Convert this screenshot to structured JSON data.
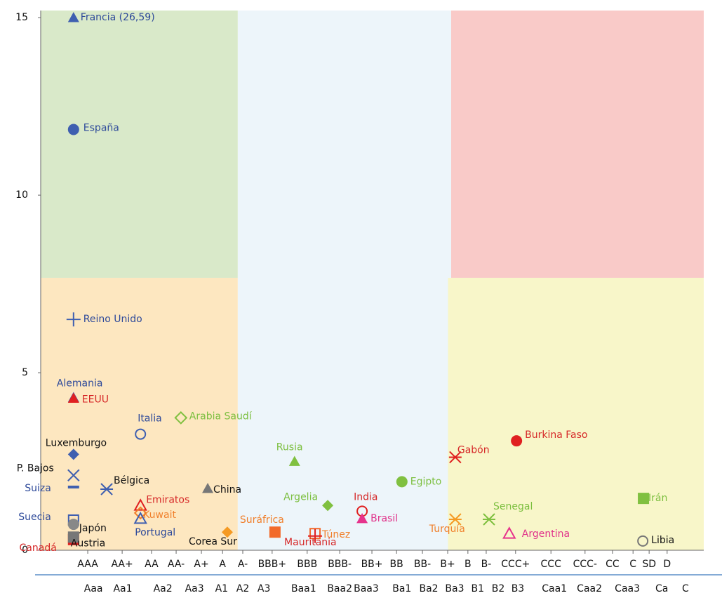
{
  "chart_data": {
    "type": "scatter",
    "xlim": [
      0,
      21
    ],
    "ylim": [
      0,
      15.2
    ],
    "yticks": [
      0,
      5,
      10,
      15
    ],
    "xticks": [
      {
        "value": 1.49,
        "label": "AAA"
      },
      {
        "value": 2.58,
        "label": "AA+"
      },
      {
        "value": 3.51,
        "label": "AA"
      },
      {
        "value": 4.29,
        "label": "AA-"
      },
      {
        "value": 5.09,
        "label": "A+"
      },
      {
        "value": 5.76,
        "label": "A"
      },
      {
        "value": 6.4,
        "label": "A-"
      },
      {
        "value": 7.33,
        "label": "BBB+"
      },
      {
        "value": 8.44,
        "label": "BBB"
      },
      {
        "value": 9.47,
        "label": "BBB-"
      },
      {
        "value": 10.49,
        "label": "BB+"
      },
      {
        "value": 11.27,
        "label": "BB"
      },
      {
        "value": 12.09,
        "label": "BB-"
      },
      {
        "value": 12.89,
        "label": "B+"
      },
      {
        "value": 13.53,
        "label": "B"
      },
      {
        "value": 14.11,
        "label": "B-"
      },
      {
        "value": 15.04,
        "label": "CCC+"
      },
      {
        "value": 16.16,
        "label": "CCC"
      },
      {
        "value": 17.24,
        "label": "CCC-"
      },
      {
        "value": 18.11,
        "label": "CC"
      },
      {
        "value": 18.76,
        "label": "C"
      },
      {
        "value": 19.27,
        "label": "SD"
      },
      {
        "value": 19.84,
        "label": "D"
      }
    ],
    "x2ticks": [
      {
        "value": 1.67,
        "label": "Aaa"
      },
      {
        "value": 2.6,
        "label": "Aa1"
      },
      {
        "value": 3.87,
        "label": "Aa2"
      },
      {
        "value": 4.87,
        "label": "Aa3"
      },
      {
        "value": 5.73,
        "label": "A1"
      },
      {
        "value": 6.4,
        "label": "A2"
      },
      {
        "value": 7.07,
        "label": "A3"
      },
      {
        "value": 8.33,
        "label": "Baa1"
      },
      {
        "value": 9.47,
        "label": "Baa2"
      },
      {
        "value": 10.31,
        "label": "Baa3"
      },
      {
        "value": 11.44,
        "label": "Ba1"
      },
      {
        "value": 12.29,
        "label": "Ba2"
      },
      {
        "value": 13.11,
        "label": "Ba3"
      },
      {
        "value": 13.84,
        "label": "B1"
      },
      {
        "value": 14.49,
        "label": "B2"
      },
      {
        "value": 15.11,
        "label": "B3"
      },
      {
        "value": 16.27,
        "label": "Caa1"
      },
      {
        "value": 17.38,
        "label": "Caa2"
      },
      {
        "value": 18.58,
        "label": "Caa3"
      },
      {
        "value": 19.67,
        "label": "Ca"
      },
      {
        "value": 20.42,
        "label": "C"
      }
    ],
    "regions": [
      {
        "x": [
          6.24,
          13.0
        ],
        "y": [
          0,
          15.2
        ],
        "color": "#edf5fa"
      },
      {
        "x": [
          0,
          6.24
        ],
        "y": [
          7.67,
          15.2
        ],
        "color": "#d9e9c9"
      },
      {
        "x": [
          0,
          6.24
        ],
        "y": [
          0,
          7.67
        ],
        "color": "#fde7c0"
      },
      {
        "x": [
          13.0,
          21
        ],
        "y": [
          7.67,
          15.2
        ],
        "color": "#f9cac8"
      },
      {
        "x": [
          12.9,
          21
        ],
        "y": [
          0,
          7.67
        ],
        "color": "#f8f6c9"
      }
    ],
    "series": [
      {
        "name": "Francia (26,59)",
        "marker": "triangle",
        "color": "#3f5fb0",
        "label_color": "#2e4a9a",
        "x": [
          1.04
        ],
        "values": [
          15.0
        ]
      },
      {
        "name": "España",
        "marker": "circle",
        "color": "#3f5fb0",
        "label_color": "#2e4a9a",
        "x": [
          1.04
        ],
        "values": [
          11.85
        ]
      },
      {
        "name": "Reino Unido",
        "marker": "plus",
        "color": "#3f5fb0",
        "label_color": "#2e4a9a",
        "x": [
          1.04
        ],
        "values": [
          6.5
        ]
      },
      {
        "name": "Alemania",
        "marker": "triangle",
        "color": "#3f5fb0",
        "label_color": "#2e4a9a",
        "x": [
          1.04
        ],
        "values": [
          4.3
        ]
      },
      {
        "name": "EEUU",
        "marker": "triangle",
        "color": "#e02020",
        "label_color": "#d62828",
        "x": [
          1.04
        ],
        "values": [
          4.28
        ]
      },
      {
        "name": "Italia",
        "marker": "circle-open",
        "color": "#3f5fb0",
        "label_color": "#2e4a9a",
        "x": [
          3.16
        ],
        "values": [
          3.27
        ]
      },
      {
        "name": "Arabia Saudí",
        "marker": "diamond-open",
        "color": "#80c040",
        "label_color": "#7cbf3f",
        "x": [
          4.44
        ],
        "values": [
          3.73
        ]
      },
      {
        "name": "Luxemburgo",
        "marker": "diamond",
        "color": "#3f5fb0",
        "label_color": "#111111",
        "x": [
          1.04
        ],
        "values": [
          2.7
        ]
      },
      {
        "name": "P. Bajos",
        "marker": "x",
        "color": "#3f5fb0",
        "label_color": "#111111",
        "x": [
          1.04
        ],
        "values": [
          2.11
        ]
      },
      {
        "name": "Suiza",
        "marker": "minus",
        "color": "#3f5fb0",
        "label_color": "#2e4a9a",
        "x": [
          1.04
        ],
        "values": [
          1.78
        ]
      },
      {
        "name": "Bélgica",
        "marker": "asterisk",
        "color": "#3f5fb0",
        "label_color": "#111111",
        "x": [
          2.09
        ],
        "values": [
          1.72
        ]
      },
      {
        "name": "China",
        "marker": "triangle",
        "color": "#777777",
        "label_color": "#111111",
        "x": [
          5.29
        ],
        "values": [
          1.74
        ]
      },
      {
        "name": "Emiratos",
        "marker": "triangle-open",
        "color": "#e02020",
        "label_color": "#d62828",
        "x": [
          3.16
        ],
        "values": [
          1.26
        ]
      },
      {
        "name": "Kuwait",
        "marker": "diamond-open",
        "color": "#f07f2a",
        "label_color": "#f07f2a",
        "x": [
          3.16
        ],
        "values": [
          1.05
        ]
      },
      {
        "name": "Portugal",
        "marker": "triangle-open",
        "color": "#3f5fb0",
        "label_color": "#2e4a9a",
        "x": [
          3.16
        ],
        "values": [
          0.89
        ]
      },
      {
        "name": "Suecia",
        "marker": "square-open",
        "color": "#3f5fb0",
        "label_color": "#2e4a9a",
        "x": [
          1.04
        ],
        "values": [
          0.85
        ]
      },
      {
        "name": "Japón",
        "marker": "circle",
        "color": "#888888",
        "label_color": "#111111",
        "x": [
          1.04
        ],
        "values": [
          0.73
        ]
      },
      {
        "name": "Canadá",
        "marker": "square",
        "color": "#e02020",
        "label_color": "#d62828",
        "x": [
          1.04
        ],
        "values": [
          0.3
        ]
      },
      {
        "name": "Austria",
        "marker": "square",
        "color": "#777777",
        "label_color": "#111111",
        "x": [
          1.04
        ],
        "values": [
          0.37
        ]
      },
      {
        "name": "Corea Sur",
        "marker": "diamond",
        "color": "#f59a23",
        "label_color": "#111111",
        "x": [
          5.91
        ],
        "values": [
          0.51
        ]
      },
      {
        "name": "Suráfrica",
        "marker": "square",
        "color": "#f26a2a",
        "label_color": "#f07f2a",
        "x": [
          7.42
        ],
        "values": [
          0.51
        ]
      },
      {
        "name": "Túnez",
        "marker": "square-open",
        "color": "#f26a2a",
        "label_color": "#f07f2a",
        "x": [
          8.69
        ],
        "values": [
          0.47
        ]
      },
      {
        "name": "Mauritania",
        "marker": "plus",
        "color": "#e02020",
        "label_color": "#d62828",
        "x": [
          8.69
        ],
        "values": [
          0.4
        ]
      },
      {
        "name": "Rusia",
        "marker": "triangle",
        "color": "#80c040",
        "label_color": "#7cbf3f",
        "x": [
          8.04
        ],
        "values": [
          2.5
        ]
      },
      {
        "name": "Argelia",
        "marker": "diamond",
        "color": "#80c040",
        "label_color": "#7cbf3f",
        "x": [
          9.09
        ],
        "values": [
          1.26
        ]
      },
      {
        "name": "India",
        "marker": "circle-open",
        "color": "#e02020",
        "label_color": "#d62828",
        "x": [
          10.18
        ],
        "values": [
          1.1
        ]
      },
      {
        "name": "Brasil",
        "marker": "triangle",
        "color": "#e6338c",
        "label_color": "#e0338a",
        "x": [
          10.18
        ],
        "values": [
          0.89
        ]
      },
      {
        "name": "Egipto",
        "marker": "circle",
        "color": "#80c040",
        "label_color": "#7cbf3f",
        "x": [
          11.44
        ],
        "values": [
          1.93
        ]
      },
      {
        "name": "Gabón",
        "marker": "asterisk",
        "color": "#e02020",
        "label_color": "#d62828",
        "x": [
          13.13
        ],
        "values": [
          2.62
        ]
      },
      {
        "name": "Burkina Faso",
        "marker": "circle",
        "color": "#e02020",
        "label_color": "#d62828",
        "x": [
          15.07
        ],
        "values": [
          3.08
        ]
      },
      {
        "name": "Turquía",
        "marker": "asterisk",
        "color": "#f59a23",
        "label_color": "#f07f2a",
        "x": [
          13.13
        ],
        "values": [
          0.87
        ]
      },
      {
        "name": "Senegal",
        "marker": "asterisk",
        "color": "#80c040",
        "label_color": "#7cbf3f",
        "x": [
          14.2
        ],
        "values": [
          0.87
        ]
      },
      {
        "name": "Argentina",
        "marker": "triangle-open",
        "color": "#e6338c",
        "label_color": "#e0338a",
        "x": [
          14.84
        ],
        "values": [
          0.47
        ]
      },
      {
        "name": "Irán",
        "marker": "square",
        "color": "#80c040",
        "label_color": "#7cbf3f",
        "x": [
          19.09
        ],
        "values": [
          1.46
        ]
      },
      {
        "name": "Libia",
        "marker": "circle-open",
        "color": "#777777",
        "label_color": "#111111",
        "x": [
          19.07
        ],
        "values": [
          0.26
        ]
      }
    ]
  }
}
